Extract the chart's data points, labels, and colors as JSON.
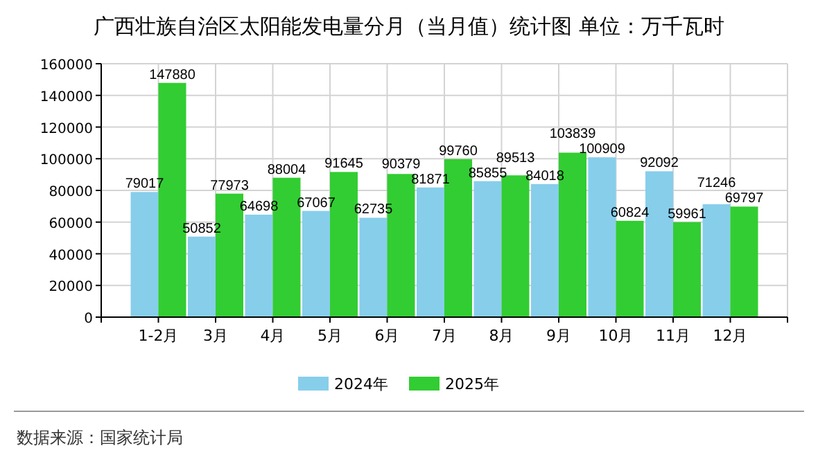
{
  "chart_data": {
    "type": "bar",
    "title": "广西壮族自治区太阳能发电量分月（当月值）统计图 单位：万千瓦时",
    "categories": [
      "1-2月",
      "3月",
      "4月",
      "5月",
      "6月",
      "7月",
      "8月",
      "9月",
      "10月",
      "11月",
      "12月"
    ],
    "series": [
      {
        "name": "2024年",
        "color": "#87ceeb",
        "values": [
          79017,
          50852,
          64698,
          67067,
          62735,
          81871,
          85855,
          84018,
          100909,
          92092,
          71246
        ]
      },
      {
        "name": "2025年",
        "color": "#32cd32",
        "values": [
          147880,
          77973,
          88004,
          91645,
          90379,
          99760,
          89513,
          103839,
          60824,
          59961,
          69797
        ]
      }
    ],
    "ylim": [
      0,
      160000
    ],
    "yticks": [
      0,
      20000,
      40000,
      60000,
      80000,
      100000,
      120000,
      140000,
      160000
    ],
    "grid": true,
    "legend": "bottom",
    "data_labels": true,
    "annotations": [
      "数据来源：国家统计局"
    ]
  }
}
